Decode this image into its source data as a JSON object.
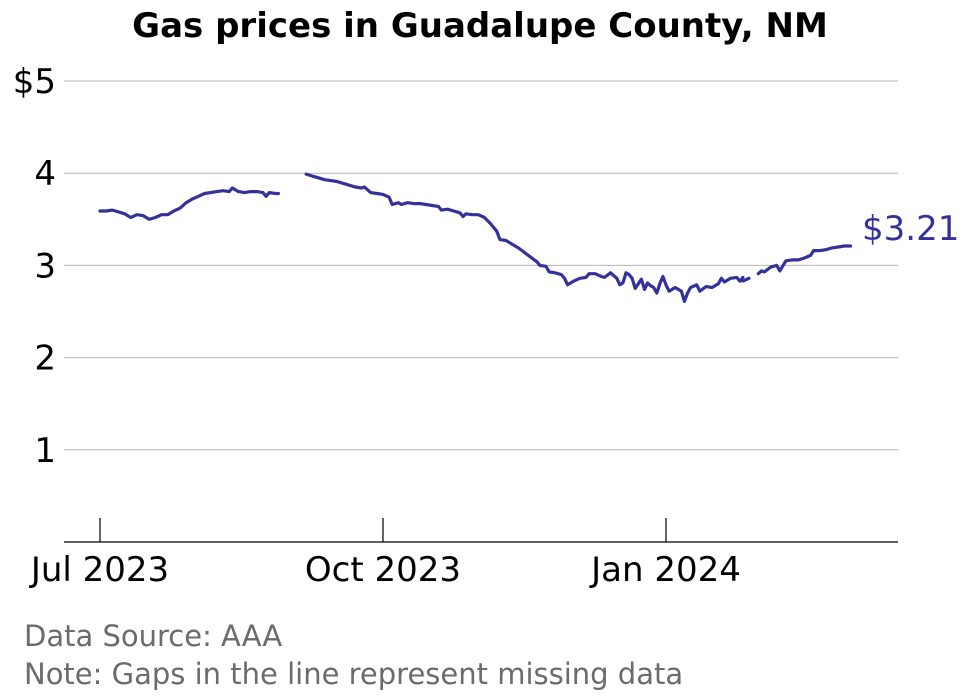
{
  "chart_data": {
    "type": "line",
    "title": "Gas prices in Guadalupe County, NM",
    "xlabel": "",
    "ylabel": "",
    "ylim": [
      0,
      5
    ],
    "xlim": [
      "2023-06-27",
      "2024-03-17"
    ],
    "y_ticks": [
      {
        "value": 1,
        "label": "1"
      },
      {
        "value": 2,
        "label": "2"
      },
      {
        "value": 3,
        "label": "3"
      },
      {
        "value": 4,
        "label": "4"
      },
      {
        "value": 5,
        "label": "$5"
      }
    ],
    "x_ticks": [
      {
        "date": "2023-07-01",
        "label": "Jul 2023"
      },
      {
        "date": "2023-10-01",
        "label": "Oct 2023"
      },
      {
        "date": "2024-01-01",
        "label": "Jan 2024"
      }
    ],
    "grid": true,
    "line_color": "#35319a",
    "end_label": "$3.21",
    "series": [
      {
        "segments": [
          [
            [
              "2023-07-01",
              3.59
            ],
            [
              "2023-07-03",
              3.59
            ],
            [
              "2023-07-05",
              3.6
            ],
            [
              "2023-07-07",
              3.58
            ],
            [
              "2023-07-09",
              3.56
            ],
            [
              "2023-07-11",
              3.52
            ],
            [
              "2023-07-13",
              3.55
            ],
            [
              "2023-07-15",
              3.54
            ],
            [
              "2023-07-17",
              3.5
            ],
            [
              "2023-07-19",
              3.52
            ],
            [
              "2023-07-21",
              3.55
            ],
            [
              "2023-07-23",
              3.55
            ],
            [
              "2023-07-25",
              3.59
            ],
            [
              "2023-07-27",
              3.62
            ],
            [
              "2023-07-29",
              3.68
            ],
            [
              "2023-07-31",
              3.72
            ],
            [
              "2023-08-02",
              3.75
            ],
            [
              "2023-08-04",
              3.78
            ],
            [
              "2023-08-06",
              3.79
            ],
            [
              "2023-08-08",
              3.8
            ],
            [
              "2023-08-10",
              3.81
            ],
            [
              "2023-08-12",
              3.8
            ],
            [
              "2023-08-13",
              3.84
            ],
            [
              "2023-08-15",
              3.8
            ],
            [
              "2023-08-17",
              3.79
            ],
            [
              "2023-08-19",
              3.8
            ],
            [
              "2023-08-21",
              3.8
            ],
            [
              "2023-08-23",
              3.79
            ],
            [
              "2023-08-24",
              3.75
            ],
            [
              "2023-08-25",
              3.79
            ],
            [
              "2023-08-27",
              3.78
            ],
            [
              "2023-08-28",
              3.78
            ]
          ],
          [
            [
              "2023-09-06",
              3.99
            ],
            [
              "2023-09-08",
              3.97
            ],
            [
              "2023-09-10",
              3.95
            ],
            [
              "2023-09-12",
              3.93
            ],
            [
              "2023-09-14",
              3.92
            ],
            [
              "2023-09-16",
              3.91
            ],
            [
              "2023-09-18",
              3.89
            ],
            [
              "2023-09-20",
              3.87
            ],
            [
              "2023-09-22",
              3.85
            ],
            [
              "2023-09-24",
              3.84
            ],
            [
              "2023-09-25",
              3.85
            ],
            [
              "2023-09-27",
              3.79
            ],
            [
              "2023-09-29",
              3.78
            ],
            [
              "2023-10-01",
              3.77
            ],
            [
              "2023-10-03",
              3.74
            ],
            [
              "2023-10-04",
              3.66
            ],
            [
              "2023-10-06",
              3.68
            ],
            [
              "2023-10-07",
              3.66
            ],
            [
              "2023-10-09",
              3.68
            ],
            [
              "2023-10-11",
              3.67
            ],
            [
              "2023-10-13",
              3.67
            ],
            [
              "2023-10-15",
              3.66
            ],
            [
              "2023-10-17",
              3.65
            ],
            [
              "2023-10-19",
              3.64
            ],
            [
              "2023-10-20",
              3.6
            ],
            [
              "2023-10-22",
              3.61
            ],
            [
              "2023-10-24",
              3.59
            ],
            [
              "2023-10-26",
              3.57
            ],
            [
              "2023-10-27",
              3.53
            ],
            [
              "2023-10-28",
              3.56
            ],
            [
              "2023-10-30",
              3.55
            ],
            [
              "2023-11-01",
              3.55
            ],
            [
              "2023-11-03",
              3.52
            ],
            [
              "2023-11-05",
              3.45
            ],
            [
              "2023-11-07",
              3.37
            ],
            [
              "2023-11-08",
              3.28
            ],
            [
              "2023-11-10",
              3.27
            ],
            [
              "2023-11-12",
              3.23
            ],
            [
              "2023-11-14",
              3.19
            ],
            [
              "2023-11-16",
              3.14
            ],
            [
              "2023-11-18",
              3.09
            ],
            [
              "2023-11-20",
              3.04
            ],
            [
              "2023-11-21",
              3.0
            ],
            [
              "2023-11-23",
              2.99
            ],
            [
              "2023-11-24",
              2.93
            ],
            [
              "2023-11-26",
              2.92
            ],
            [
              "2023-11-28",
              2.9
            ],
            [
              "2023-11-29",
              2.86
            ],
            [
              "2023-11-30",
              2.79
            ],
            [
              "2023-12-02",
              2.83
            ],
            [
              "2023-12-04",
              2.86
            ],
            [
              "2023-12-06",
              2.87
            ],
            [
              "2023-12-07",
              2.91
            ],
            [
              "2023-12-09",
              2.91
            ],
            [
              "2023-12-11",
              2.88
            ],
            [
              "2023-12-12",
              2.87
            ],
            [
              "2023-12-14",
              2.92
            ],
            [
              "2023-12-16",
              2.86
            ],
            [
              "2023-12-17",
              2.79
            ],
            [
              "2023-12-18",
              2.81
            ],
            [
              "2023-12-19",
              2.92
            ],
            [
              "2023-12-20",
              2.9
            ],
            [
              "2023-12-21",
              2.86
            ],
            [
              "2023-12-22",
              2.75
            ],
            [
              "2023-12-23",
              2.8
            ],
            [
              "2023-12-24",
              2.85
            ],
            [
              "2023-12-25",
              2.74
            ],
            [
              "2023-12-26",
              2.81
            ],
            [
              "2023-12-27",
              2.78
            ],
            [
              "2023-12-28",
              2.76
            ],
            [
              "2023-12-29",
              2.7
            ],
            [
              "2023-12-30",
              2.8
            ],
            [
              "2023-12-31",
              2.88
            ],
            [
              "2024-01-01",
              2.79
            ],
            [
              "2024-01-02",
              2.72
            ],
            [
              "2024-01-04",
              2.76
            ],
            [
              "2024-01-06",
              2.72
            ],
            [
              "2024-01-07",
              2.61
            ],
            [
              "2024-01-08",
              2.7
            ],
            [
              "2024-01-09",
              2.76
            ],
            [
              "2024-01-11",
              2.79
            ],
            [
              "2024-01-12",
              2.72
            ],
            [
              "2024-01-14",
              2.77
            ],
            [
              "2024-01-16",
              2.76
            ],
            [
              "2024-01-18",
              2.8
            ],
            [
              "2024-01-19",
              2.86
            ],
            [
              "2024-01-20",
              2.82
            ],
            [
              "2024-01-22",
              2.86
            ],
            [
              "2024-01-24",
              2.87
            ],
            [
              "2024-01-25",
              2.83
            ],
            [
              "2024-01-26",
              2.87
            ]
          ],
          [
            [
              "2024-01-26",
              2.83
            ],
            [
              "2024-01-28",
              2.86
            ]
          ],
          [
            [
              "2024-01-31",
              2.91
            ],
            [
              "2024-02-01",
              2.94
            ],
            [
              "2024-02-02",
              2.93
            ],
            [
              "2024-02-04",
              2.98
            ],
            [
              "2024-02-06",
              3.0
            ],
            [
              "2024-02-07",
              2.94
            ],
            [
              "2024-02-09",
              3.05
            ],
            [
              "2024-02-11",
              3.06
            ],
            [
              "2024-02-13",
              3.06
            ],
            [
              "2024-02-15",
              3.08
            ],
            [
              "2024-02-17",
              3.11
            ],
            [
              "2024-02-18",
              3.16
            ],
            [
              "2024-02-20",
              3.16
            ],
            [
              "2024-02-22",
              3.17
            ],
            [
              "2024-02-24",
              3.19
            ],
            [
              "2024-02-26",
              3.2
            ],
            [
              "2024-02-28",
              3.21
            ],
            [
              "2024-03-01",
              3.21
            ]
          ]
        ]
      }
    ],
    "notes": [
      "Data Source: AAA",
      "Note: Gaps in the line represent missing data"
    ]
  }
}
